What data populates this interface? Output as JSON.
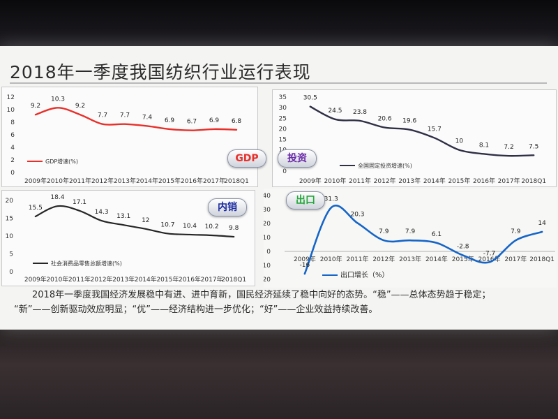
{
  "slide": {
    "title": "2018年一季度我国纺织行业运行表现",
    "summary_lines": [
      "2018年一季度我国经济发展稳中有进、进中育新，国民经济延续了稳中向好的态势。“稳”——总体态势趋于稳定；",
      "“新”——创新驱动效应明显；“优”——经济结构进一步优化；“好”——企业效益持续改善。"
    ]
  },
  "colors": {
    "gdp": "#e8302a",
    "invest": "#2f2f45",
    "consume": "#262626",
    "export": "#1565c8"
  },
  "chart_data": [
    {
      "type": "line",
      "badge": "GDP",
      "badge_color": "#e8302a",
      "categories": [
        "2009年",
        "2010年",
        "2011年",
        "2012年",
        "2013年",
        "2014年",
        "2015年",
        "2016年",
        "2017年",
        "2018Q1"
      ],
      "series": [
        {
          "name": "GDP增速(%)",
          "values": [
            9.2,
            10.3,
            9.2,
            7.7,
            7.7,
            7.4,
            6.9,
            6.7,
            6.9,
            6.8
          ]
        }
      ],
      "data_labels": [
        "9.2",
        "10.3",
        "9.2",
        "7.7",
        "7.7",
        "7.4",
        "6.9",
        "6.7",
        "6.9",
        "6.8"
      ],
      "yticks": [
        "0",
        "2",
        "4",
        "6",
        "8",
        "10",
        "12"
      ],
      "ylim": [
        0,
        12
      ],
      "legend": "bottom-left"
    },
    {
      "type": "line",
      "badge": "投资",
      "badge_color": "#6a2aa8",
      "categories": [
        "2009年",
        "2010年",
        "2011年",
        "2012年",
        "2013年",
        "2014年",
        "2015年",
        "2016年",
        "2017年",
        "2018Q1"
      ],
      "series": [
        {
          "name": "全国固定投资增速(%)",
          "values": [
            30.5,
            24.5,
            23.8,
            20.6,
            19.6,
            15.7,
            10,
            8.1,
            7.2,
            7.5
          ]
        }
      ],
      "data_labels": [
        "30.5",
        "24.5",
        "23.8",
        "20.6",
        "19.6",
        "15.7",
        "10",
        "8.1",
        "7.2",
        "7.5"
      ],
      "yticks": [
        "0",
        "5",
        "10",
        "15",
        "20",
        "25",
        "30",
        "35"
      ],
      "ylim": [
        0,
        35
      ],
      "legend": "bottom-left"
    },
    {
      "type": "line",
      "badge": "内销",
      "badge_color": "#1a2aa0",
      "categories": [
        "2009年",
        "2010年",
        "2011年",
        "2012年",
        "2013年",
        "2014年",
        "2015年",
        "2016年",
        "2017年",
        "2018Q1"
      ],
      "series": [
        {
          "name": "社会消费品零售总额增速(%)",
          "values": [
            15.5,
            18.4,
            17.1,
            14.3,
            13.1,
            12,
            10.7,
            10.4,
            10.2,
            9.8
          ]
        }
      ],
      "data_labels": [
        "15.5",
        "18.4",
        "17.1",
        "14.3",
        "13.1",
        "12",
        "10.7",
        "10.4",
        "10.2",
        "9.8"
      ],
      "yticks": [
        "0",
        "5",
        "10",
        "15",
        "20"
      ],
      "ylim": [
        0,
        20
      ],
      "legend": "bottom-left"
    },
    {
      "type": "line",
      "badge": "出口",
      "badge_color": "#22a838",
      "categories": [
        "2009年",
        "2010年",
        "2011年",
        "2012年",
        "2013年",
        "2014年",
        "2015年",
        "2016年",
        "2017年",
        "2018Q1"
      ],
      "series": [
        {
          "name": "出口增长（%）",
          "values": [
            -16,
            31.3,
            20.3,
            7.9,
            7.9,
            6.1,
            -2.8,
            -7.7,
            7.9,
            14
          ]
        }
      ],
      "data_labels": [
        "-16",
        "31.3",
        "20.3",
        "7.9",
        "7.9",
        "6.1",
        "-2.8",
        "-7.7",
        "7.9",
        "14"
      ],
      "yticks": [
        "-20",
        "-10",
        "0",
        "10",
        "20",
        "30",
        "40"
      ],
      "ylim": [
        -20,
        40
      ],
      "legend": "bottom-left"
    }
  ]
}
